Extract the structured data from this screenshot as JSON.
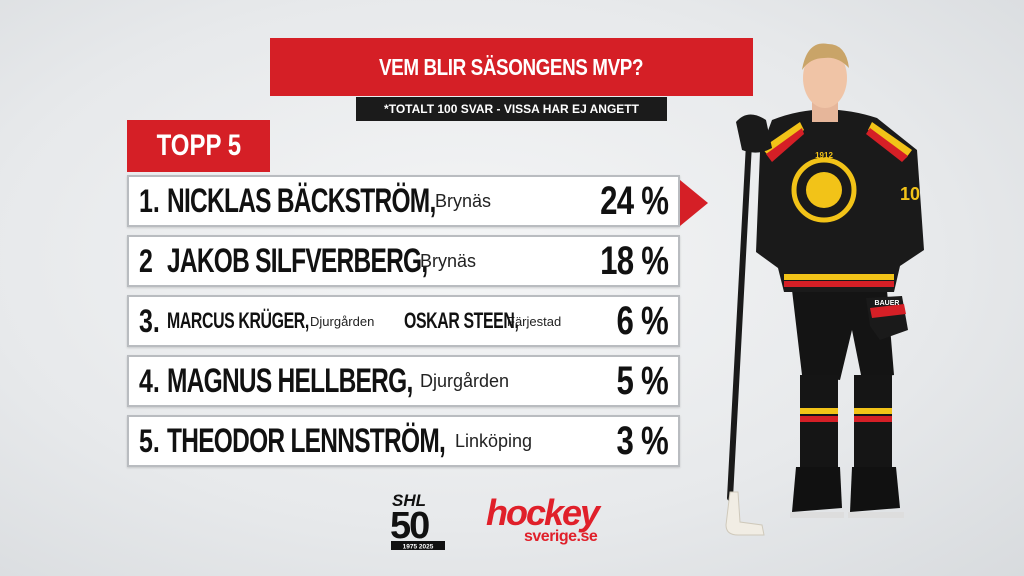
{
  "header": {
    "title": "VEM BLIR SÄSONGENS MVP?",
    "subtitle": "*TOTALT 100 SVAR - VISSA HAR EJ ANGETT"
  },
  "list": {
    "tab_label": "TOPP 5",
    "rows": [
      {
        "rank": "1.",
        "name": "NICKLAS BÄCKSTRÖM,",
        "team": "Brynäs",
        "pct": "24 %"
      },
      {
        "rank": "2",
        "name": "JAKOB SILFVERBERG,",
        "team": "Brynäs",
        "pct": "18 %"
      },
      {
        "rank": "3.",
        "name": "MARCUS KRÜGER,",
        "team": "Djurgården",
        "name2": "OSKAR STEEN,",
        "team2": "Färjestad",
        "pct": "6 %"
      },
      {
        "rank": "4.",
        "name": "MAGNUS HELLBERG,",
        "team": "Djurgården",
        "pct": "5 %"
      },
      {
        "rank": "5.",
        "name": "THEODOR LENNSTRÖM,",
        "team": "Linköping",
        "pct": "3 %"
      }
    ]
  },
  "logos": {
    "shl_text": "SHL",
    "shl_number": "50",
    "shl_years": "1975 2025",
    "hockey_word": "hockey",
    "hockey_domain": "sverige.se"
  },
  "player": {
    "jersey_year": "1912",
    "jersey_number": "10",
    "glove_brand": "BAUER"
  },
  "colors": {
    "accent_red": "#d51f26",
    "dark": "#1b1b1b",
    "jersey_yellow": "#f2c318"
  }
}
